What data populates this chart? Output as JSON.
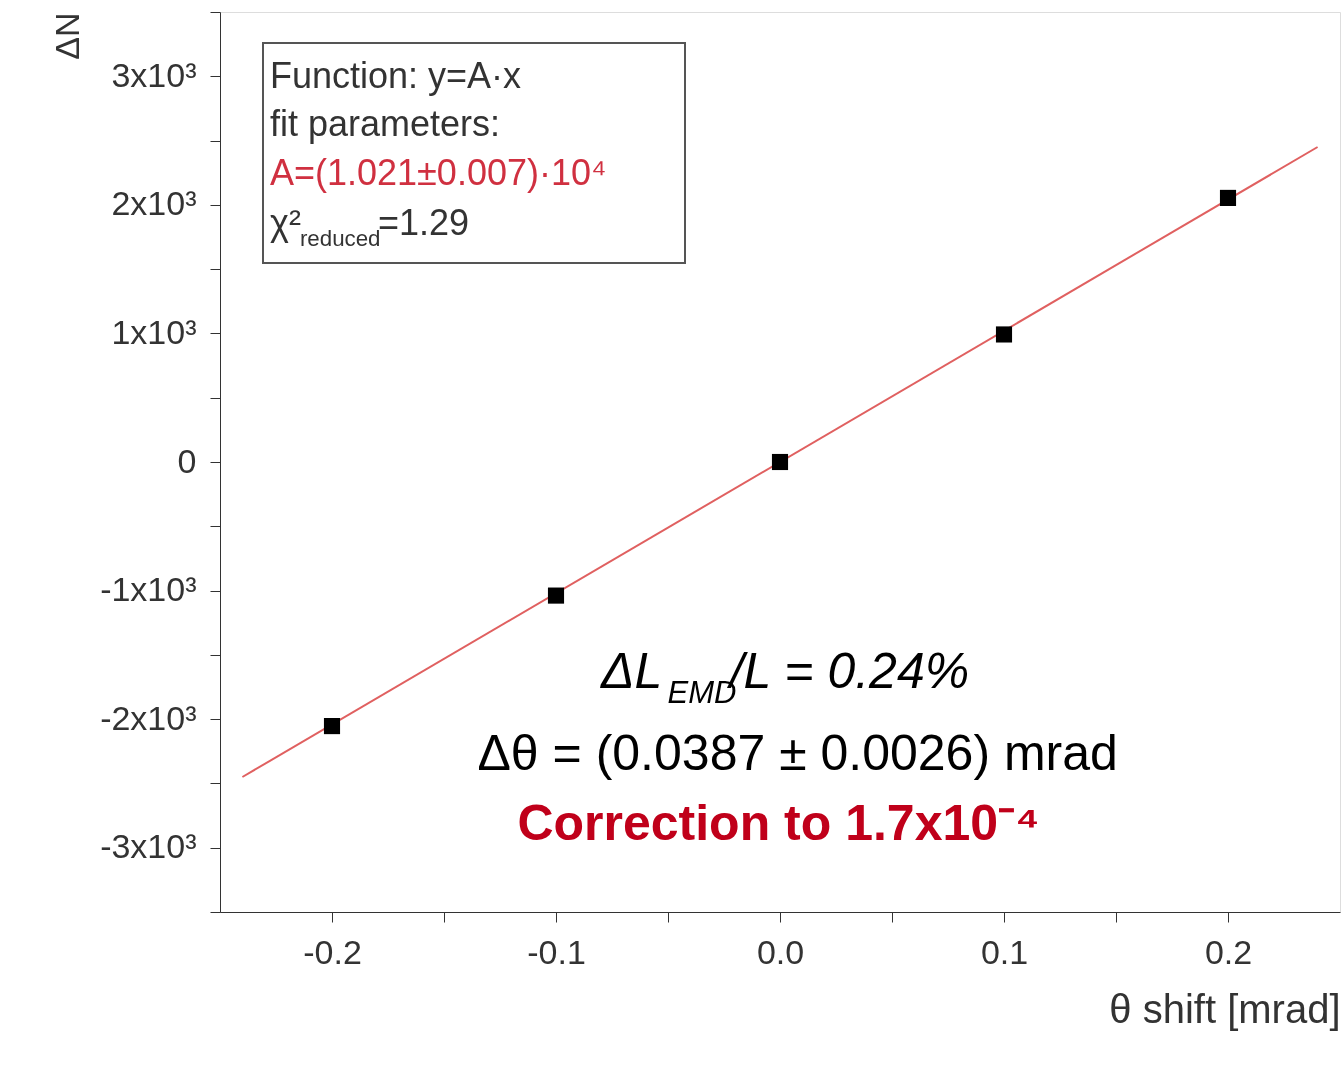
{
  "chart_data": {
    "type": "scatter",
    "xlabel": "θ shift [mrad]",
    "ylabel": "ΔN",
    "x": [
      -0.2,
      -0.1,
      0.0,
      0.1,
      0.2
    ],
    "series": [
      {
        "type": "scatter",
        "color": "#000000",
        "values": [
          -2054,
          -1039,
          0,
          992,
          2054
        ]
      },
      {
        "type": "line",
        "marker": "none",
        "color": "#e06060",
        "x": [
          -0.24,
          0.24
        ],
        "values": [
          -2450,
          2450
        ]
      }
    ],
    "xlim": [
      -0.25,
      0.25
    ],
    "ylim": [
      -3500,
      3500
    ],
    "xticks": [
      {
        "value": -0.2,
        "label": "-0.2"
      },
      {
        "value": -0.15,
        "label": null
      },
      {
        "value": -0.1,
        "label": "-0.1"
      },
      {
        "value": -0.05,
        "label": null
      },
      {
        "value": 0,
        "label": "0.0"
      },
      {
        "value": 0.05,
        "label": null
      },
      {
        "value": 0.1,
        "label": "0.1"
      },
      {
        "value": 0.15,
        "label": null
      },
      {
        "value": 0.2,
        "label": "0.2"
      }
    ],
    "yticks": [
      {
        "value": -3500,
        "label": null
      },
      {
        "value": -3000,
        "label": "-3x10³"
      },
      {
        "value": -2500,
        "label": null
      },
      {
        "value": -2000,
        "label": "-2x10³"
      },
      {
        "value": -1500,
        "label": null
      },
      {
        "value": -1000,
        "label": "-1x10³"
      },
      {
        "value": -500,
        "label": null
      },
      {
        "value": 0,
        "label": "0"
      },
      {
        "value": 500,
        "label": null
      },
      {
        "value": 1000,
        "label": "1x10³"
      },
      {
        "value": 1500,
        "label": null
      },
      {
        "value": 2000,
        "label": "2x10³"
      },
      {
        "value": 2500,
        "label": null
      },
      {
        "value": 3000,
        "label": "3x10³"
      },
      {
        "value": 3500,
        "label": null
      }
    ],
    "annotations": [
      "Function: y=A·x",
      "fit parameters:",
      "A=(1.021±0.007)·10⁴",
      "χ²$_{reduced}$=1.29",
      "ΔL$_{EMD}$/L  = 0.24%",
      "Δθ = (0.0387 ± 0.0026) mrad",
      "Correction to 1.7x10⁻⁴"
    ],
    "marker": "square",
    "line_style": "solid",
    "grid": false
  }
}
